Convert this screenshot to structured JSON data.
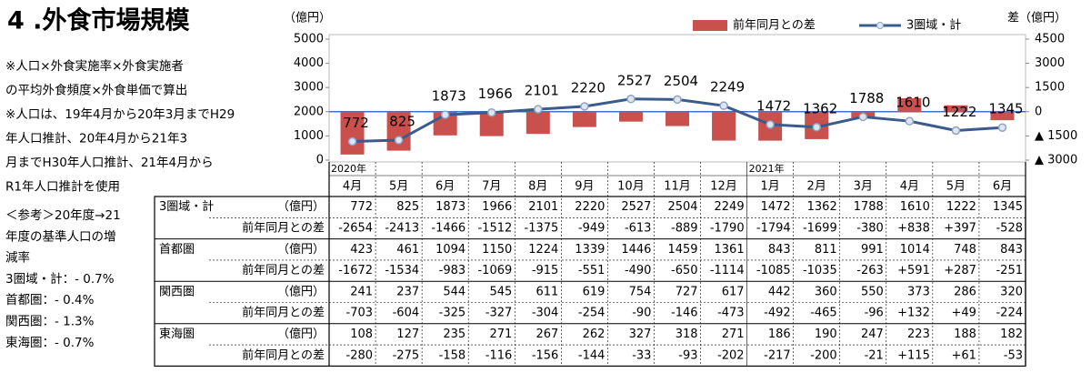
{
  "title": "4 .外食市場規模",
  "notes": [
    "※人口×外食実施率×外食実施者",
    "の平均外食頻度×外食単価で算出",
    "※人口は、19年4月から20年3月までH29",
    "年人口推計、20年4月から21年3",
    "月までH30年人口推計、21年4月から",
    "R1年人口推計を使用",
    "＜参考＞20年度→21",
    "年度の基準人口の増",
    "減率",
    "3圏域・計：- 0.7%",
    "首都圏：- 0.4%",
    "関西圏：- 1.3%",
    "東海圏：- 0.7%"
  ],
  "chart_data": {
    "type": "bar_line",
    "y_label": "（億円）",
    "y2_label": "差（億円）",
    "categories": [
      "4月",
      "5月",
      "6月",
      "7月",
      "8月",
      "9月",
      "10月",
      "11月",
      "12月",
      "1月",
      "2月",
      "3月",
      "4月",
      "5月",
      "6月"
    ],
    "year_labels": [
      "2020年",
      null,
      null,
      null,
      null,
      null,
      null,
      null,
      null,
      "2021年",
      null,
      null,
      null,
      null,
      null
    ],
    "ylim": [
      0,
      5000
    ],
    "yticks": [
      0,
      1000,
      2000,
      3000,
      4000,
      5000
    ],
    "y2lim": [
      -3000,
      4500
    ],
    "y2ticks": [
      {
        "value": -3000,
        "label": "▲ 3000"
      },
      {
        "value": -1500,
        "label": "▲ 1500"
      },
      0,
      1500,
      3000,
      4500
    ],
    "legend": "top-right",
    "series": [
      {
        "name": "前年同月との差",
        "type": "bar",
        "axis": "y2",
        "color": "#c9504c",
        "values": [
          -2654,
          -2413,
          -1466,
          -1512,
          -1375,
          -949,
          -613,
          -889,
          -1790,
          -1794,
          -1699,
          -380,
          838,
          397,
          -528
        ],
        "value_labels": [
          "-2654",
          "-2413",
          "-1466",
          "-1512",
          "-1375",
          "-949",
          "-613",
          "-889",
          "-1790",
          "-1794",
          "-1699",
          "-380",
          "+838",
          "+397",
          "-528"
        ]
      },
      {
        "name": "3圏域・計",
        "type": "line",
        "color": "#3b5b8c",
        "values": [
          772,
          825,
          1873,
          1966,
          2101,
          2220,
          2527,
          2504,
          2249,
          1472,
          1362,
          1788,
          1610,
          1222,
          1345
        ]
      }
    ]
  },
  "table": {
    "unit": "（億円）",
    "diff_label": "前年同月との差",
    "rows": [
      {
        "name": "首都圏",
        "values": [
          423,
          461,
          1094,
          1150,
          1224,
          1339,
          1446,
          1459,
          1361,
          843,
          811,
          991,
          1014,
          748,
          843
        ],
        "diffs": [
          "-1672",
          "-1534",
          "-983",
          "-1069",
          "-915",
          "-551",
          "-490",
          "-650",
          "-1114",
          "-1085",
          "-1035",
          "-263",
          "+591",
          "+287",
          "-251"
        ]
      },
      {
        "name": "関西圏",
        "values": [
          241,
          237,
          544,
          545,
          611,
          619,
          754,
          727,
          617,
          442,
          360,
          550,
          373,
          286,
          320
        ],
        "diffs": [
          "-703",
          "-604",
          "-325",
          "-327",
          "-304",
          "-254",
          "-90",
          "-146",
          "-473",
          "-492",
          "-465",
          "-96",
          "+132",
          "+49",
          "-224"
        ]
      },
      {
        "name": "東海圏",
        "values": [
          108,
          127,
          235,
          271,
          267,
          262,
          327,
          318,
          271,
          186,
          190,
          247,
          223,
          188,
          182
        ],
        "diffs": [
          "-280",
          "-275",
          "-158",
          "-116",
          "-156",
          "-144",
          "-33",
          "-93",
          "-202",
          "-217",
          "-200",
          "-21",
          "+115",
          "+61",
          "-53"
        ]
      }
    ]
  }
}
